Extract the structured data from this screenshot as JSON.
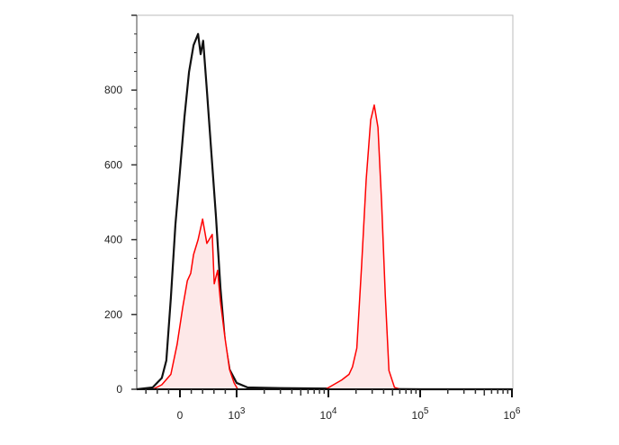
{
  "chart_data": {
    "type": "area",
    "title": "",
    "xlabel": "",
    "ylabel": "",
    "x_scale": "biexponential",
    "ylim": [
      0,
      1000
    ],
    "xlim": [
      -760,
      1000000
    ],
    "y_ticks": [
      0,
      200,
      400,
      600,
      800
    ],
    "y_tick_labels": [
      "0",
      "200",
      "400",
      "600",
      "800"
    ],
    "x_ticks": [
      0,
      1000,
      10000,
      100000,
      1000000
    ],
    "x_tick_labels": [
      {
        "base": "0",
        "exp": ""
      },
      {
        "base": "10",
        "exp": "3"
      },
      {
        "base": "10",
        "exp": "4"
      },
      {
        "base": "10",
        "exp": "5"
      },
      {
        "base": "10",
        "exp": "6"
      }
    ],
    "grid": false,
    "series": [
      {
        "color": "#111111",
        "fill": "none",
        "x": [
          -760,
          -480,
          -320,
          -240,
          -160,
          -80,
          0,
          80,
          160,
          240,
          320,
          365,
          410,
          475,
          555,
          635,
          715,
          795,
          875,
          1000,
          1310,
          3000,
          10000,
          100000,
          1000000
        ],
        "y": [
          0,
          5,
          30,
          77,
          245,
          440,
          583,
          728,
          848,
          920,
          950,
          896,
          932,
          800,
          631,
          463,
          270,
          125,
          53,
          17,
          5,
          3,
          2,
          0,
          0
        ]
      },
      {
        "color": "#ff0000",
        "fill": "#fde8e8",
        "x": [
          -480,
          -320,
          -160,
          -50,
          50,
          130,
          190,
          240,
          320,
          400,
          475,
          570,
          605,
          665,
          715,
          795,
          875,
          955,
          1030
        ],
        "y": [
          0,
          12,
          40,
          120,
          220,
          290,
          310,
          360,
          400,
          455,
          390,
          414,
          282,
          318,
          234,
          137,
          53,
          17,
          0
        ]
      },
      {
        "color": "#ff0000",
        "fill": "#fde8e8",
        "x": [
          9330,
          14000,
          16800,
          18300,
          20400,
          23000,
          25800,
          28900,
          31600,
          34700,
          38000,
          41700,
          45700,
          52500,
          61000
        ],
        "y": [
          0,
          25,
          40,
          60,
          110,
          330,
          560,
          720,
          760,
          700,
          500,
          250,
          50,
          5,
          0
        ]
      }
    ]
  }
}
